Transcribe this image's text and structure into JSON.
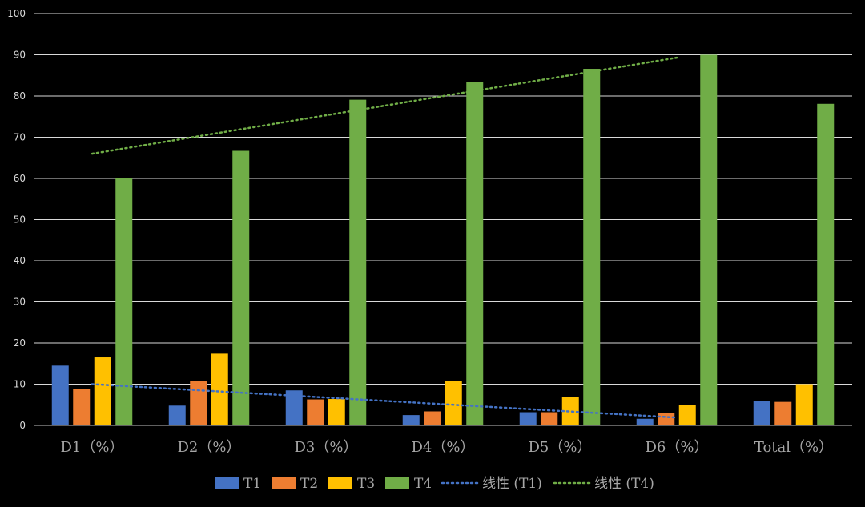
{
  "chart_data": {
    "type": "bar",
    "categories": [
      "D1（%）",
      "D2（%）",
      "D3（%）",
      "D4（%）",
      "D5（%）",
      "D6（%）",
      "Total（%）"
    ],
    "ylim": [
      0,
      100
    ],
    "yticks": [
      0,
      10,
      20,
      30,
      40,
      50,
      60,
      70,
      80,
      90,
      100
    ],
    "grid": true,
    "legend_position": "bottom",
    "series": [
      {
        "name": "T1",
        "color": "#4472c4",
        "values": [
          14.5,
          4.8,
          8.5,
          2.5,
          3.2,
          1.6,
          5.9
        ]
      },
      {
        "name": "T2",
        "color": "#ed7d31",
        "values": [
          8.9,
          10.7,
          6.3,
          3.4,
          3.2,
          3.0,
          5.7
        ]
      },
      {
        "name": "T3",
        "color": "#ffc000",
        "values": [
          16.5,
          17.4,
          6.4,
          10.7,
          6.8,
          5.0,
          10.0
        ]
      },
      {
        "name": "T4",
        "color": "#70ad47",
        "values": [
          60.0,
          66.7,
          79.1,
          83.3,
          86.6,
          90.0,
          78.1
        ]
      }
    ],
    "trendlines": [
      {
        "name": "线性 (T1)",
        "series": "T1",
        "color": "#4472c4",
        "points": [
          [
            1,
            10.0
          ],
          [
            6,
            1.9
          ]
        ]
      },
      {
        "name": "线性 (T4)",
        "series": "T4",
        "color": "#70ad47",
        "points": [
          [
            1,
            66.0
          ],
          [
            6,
            89.3
          ]
        ]
      }
    ],
    "legend": [
      "T1",
      "T2",
      "T3",
      "T4",
      "线性 (T1)",
      "线性 (T4)"
    ]
  }
}
